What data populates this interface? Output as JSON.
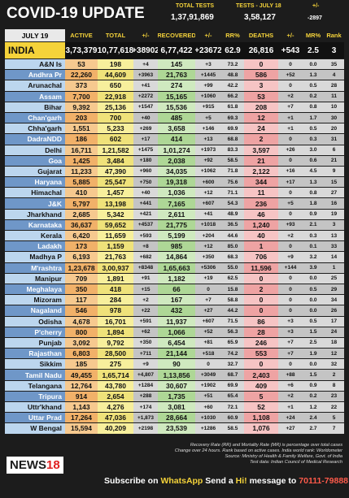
{
  "header": {
    "title": "COVID-19 UPDATE",
    "tests_label": "TOTAL TESTS",
    "tests_value": "1,37,91,869",
    "day_label": "TESTS - JULY 18",
    "day_value": "3,58,127",
    "change_label": "+/-",
    "change_value": "-2897"
  },
  "table": {
    "columns": [
      "JULY 19",
      "ACTIVE",
      "TOTAL",
      "+/-",
      "RECOVERED",
      "+/-",
      "RR%",
      "DEATHS",
      "+/-",
      "MR%",
      "Rank"
    ],
    "india": [
      "INDIA",
      "3,73,379",
      "10,77,618",
      "+38902",
      "6,77,422",
      "+23672",
      "62.9",
      "26,816",
      "+543",
      "2.5",
      "3"
    ],
    "rows": [
      [
        "A&N Is",
        "53",
        "198",
        "+4",
        "145",
        "+3",
        "73.2",
        "0",
        "0",
        "0.0",
        "35"
      ],
      [
        "Andhra Pr",
        "22,260",
        "44,609",
        "+3963",
        "21,763",
        "+1445",
        "48.8",
        "586",
        "+52",
        "1.3",
        "4"
      ],
      [
        "Arunachal",
        "373",
        "650",
        "+41",
        "274",
        "+99",
        "42.2",
        "3",
        "0",
        "0.5",
        "28"
      ],
      [
        "Assam",
        "7,700",
        "22,918",
        "+2272",
        "15,165",
        "+1060",
        "66.2",
        "53",
        "+2",
        "0.2",
        "11"
      ],
      [
        "Bihar",
        "9,392",
        "25,136",
        "+1547",
        "15,536",
        "+915",
        "61.8",
        "208",
        "+7",
        "0.8",
        "10"
      ],
      [
        "Chan'garh",
        "203",
        "700",
        "+40",
        "485",
        "+5",
        "69.3",
        "12",
        "+1",
        "1.7",
        "30"
      ],
      [
        "Chha'garh",
        "1,551",
        "5,233",
        "+269",
        "3,658",
        "+146",
        "69.9",
        "24",
        "+1",
        "0.5",
        "20"
      ],
      [
        "DadraNDD",
        "186",
        "602",
        "+17",
        "414",
        "+13",
        "68.8",
        "2",
        "0",
        "0.3",
        "31"
      ],
      [
        "Delhi",
        "16,711",
        "1,21,582",
        "+1475",
        "1,01,274",
        "+1973",
        "83.3",
        "3,597",
        "+26",
        "3.0",
        "6"
      ],
      [
        "Goa",
        "1,425",
        "3,484",
        "+180",
        "2,038",
        "+92",
        "58.5",
        "21",
        "0",
        "0.6",
        "21"
      ],
      [
        "Gujarat",
        "11,233",
        "47,390",
        "+960",
        "34,035",
        "+1062",
        "71.8",
        "2,122",
        "+16",
        "4.5",
        "9"
      ],
      [
        "Haryana",
        "5,885",
        "25,547",
        "+750",
        "19,318",
        "+600",
        "75.6",
        "344",
        "+17",
        "1.3",
        "15"
      ],
      [
        "Himachal",
        "410",
        "1,457",
        "+40",
        "1,036",
        "+12",
        "71.1",
        "11",
        "0",
        "0.8",
        "27"
      ],
      [
        "J&K",
        "5,797",
        "13,198",
        "+441",
        "7,165",
        "+607",
        "54.3",
        "236",
        "+5",
        "1.8",
        "16"
      ],
      [
        "Jharkhand",
        "2,685",
        "5,342",
        "+421",
        "2,611",
        "+41",
        "48.9",
        "46",
        "0",
        "0.9",
        "19"
      ],
      [
        "Karnataka",
        "36,637",
        "59,652",
        "+4537",
        "21,775",
        "+1018",
        "36.5",
        "1,240",
        "+93",
        "2.1",
        "3"
      ],
      [
        "Kerala",
        "6,420",
        "11,659",
        "+593",
        "5,199",
        "+204",
        "44.6",
        "40",
        "+2",
        "0.3",
        "13"
      ],
      [
        "Ladakh",
        "173",
        "1,159",
        "+8",
        "985",
        "+12",
        "85.0",
        "1",
        "0",
        "0.1",
        "33"
      ],
      [
        "Madhya P",
        "6,193",
        "21,763",
        "+682",
        "14,864",
        "+350",
        "68.3",
        "706",
        "+9",
        "3.2",
        "14"
      ],
      [
        "M'rashtra",
        "1,23,678",
        "3,00,937",
        "+8348",
        "1,65,663",
        "+5306",
        "55.0",
        "11,596",
        "+144",
        "3.9",
        "1"
      ],
      [
        "Manipur",
        "709",
        "1,891",
        "+91",
        "1,182",
        "+19",
        "62.5",
        "0",
        "0",
        "0.0",
        "25"
      ],
      [
        "Meghalaya",
        "350",
        "418",
        "+15",
        "66",
        "0",
        "15.8",
        "2",
        "0",
        "0.5",
        "29"
      ],
      [
        "Mizoram",
        "117",
        "284",
        "+2",
        "167",
        "+7",
        "58.8",
        "0",
        "0",
        "0.0",
        "34"
      ],
      [
        "Nagaland",
        "546",
        "978",
        "+22",
        "432",
        "+27",
        "44.2",
        "0",
        "0",
        "0.0",
        "26"
      ],
      [
        "Odisha",
        "4,678",
        "16,701",
        "+591",
        "11,937",
        "+607",
        "71.5",
        "86",
        "+3",
        "0.5",
        "17"
      ],
      [
        "P'cherry",
        "800",
        "1,894",
        "+62",
        "1,066",
        "+52",
        "56.3",
        "28",
        "+3",
        "1.5",
        "24"
      ],
      [
        "Punjab",
        "3,092",
        "9,792",
        "+350",
        "6,454",
        "+81",
        "65.9",
        "246",
        "+7",
        "2.5",
        "18"
      ],
      [
        "Rajasthan",
        "6,803",
        "28,500",
        "+711",
        "21,144",
        "+518",
        "74.2",
        "553",
        "+7",
        "1.9",
        "12"
      ],
      [
        "Sikkim",
        "185",
        "275",
        "+9",
        "90",
        "0",
        "32.7",
        "0",
        "0",
        "0.0",
        "32"
      ],
      [
        "Tamil Nadu",
        "49,455",
        "1,65,714",
        "+4,807",
        "1,13,856",
        "+3049",
        "68.7",
        "2,403",
        "+88",
        "1.5",
        "2"
      ],
      [
        "Telangana",
        "12,764",
        "43,780",
        "+1284",
        "30,607",
        "+1902",
        "69.9",
        "409",
        "+6",
        "0.9",
        "8"
      ],
      [
        "Tripura",
        "914",
        "2,654",
        "+288",
        "1,735",
        "+51",
        "65.4",
        "5",
        "+2",
        "0.2",
        "23"
      ],
      [
        "Uttr'khand",
        "1,143",
        "4,276",
        "+174",
        "3,081",
        "+60",
        "72.1",
        "52",
        "+1",
        "1.2",
        "22"
      ],
      [
        "Uttar Prad",
        "17,264",
        "47,036",
        "+1,873",
        "28,664",
        "+1030",
        "60.9",
        "1,108",
        "+24",
        "2.4",
        "5"
      ],
      [
        "W Bengal",
        "15,594",
        "40,209",
        "+2198",
        "23,539",
        "+1286",
        "58.5",
        "1,076",
        "+27",
        "2.7",
        "7"
      ]
    ]
  },
  "footer": {
    "notes": [
      "Recovery Rate (RR) and Mortality Rate (MR) is percentage over total cases",
      "Change over 24 hours. Rank based on active cases. India world rank: Worldometer",
      "Source: Ministry of Health & Family Welfare, Govt. of India",
      "Test data: Indian Council of Medical Research"
    ],
    "logo_text": "NEWS",
    "logo_number": "18",
    "subscribe": [
      "Subscribe on",
      "WhatsApp",
      "Send a",
      "Hi!",
      "message to",
      "70111-79888"
    ]
  }
}
